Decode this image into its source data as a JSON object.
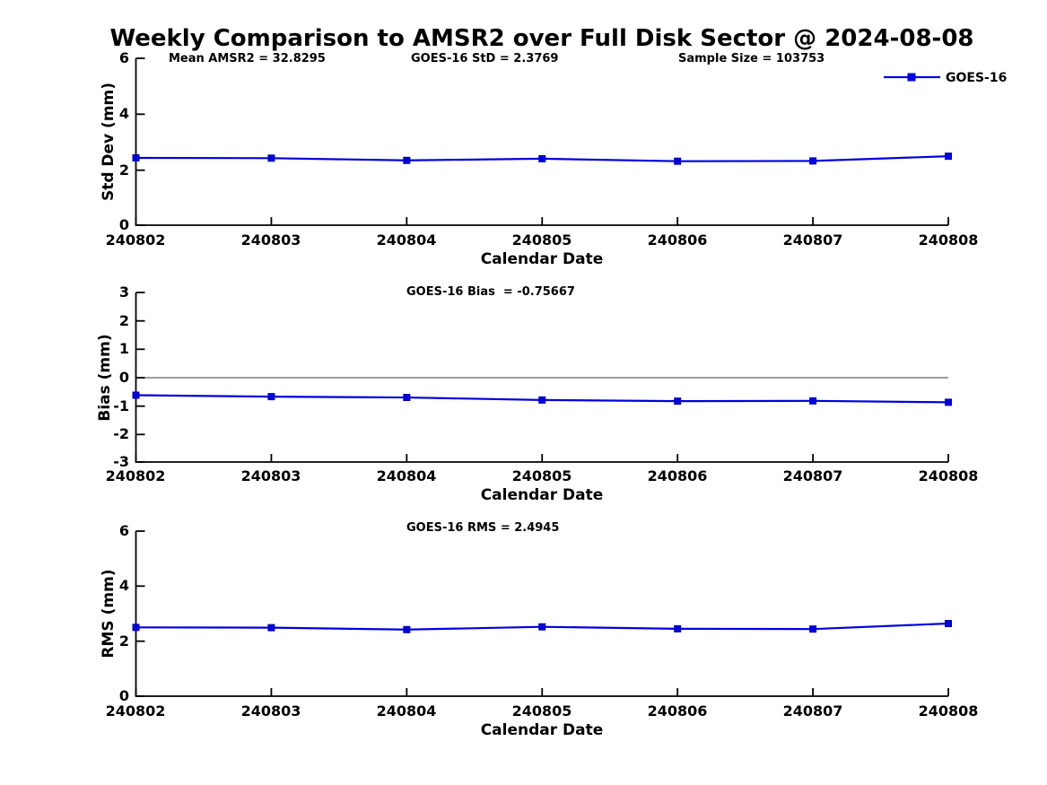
{
  "title": "Weekly Comparison to AMSR2 over Full Disk Sector @ 2024-08-08",
  "colors": {
    "series": "#0000e0",
    "marker_edge": "#0000b0",
    "zero_line": "#7f7f7f",
    "axis": "#000000"
  },
  "stats": {
    "mean_amsr2": 32.8295,
    "goes16_std": 2.3769,
    "sample_size": 103753,
    "goes16_bias": -0.75667,
    "goes16_rms": 2.4945
  },
  "chart_data": [
    {
      "type": "line",
      "ylabel": "Std Dev (mm)",
      "xlabel": "Calendar Date",
      "x": [
        "240802",
        "240803",
        "240804",
        "240805",
        "240806",
        "240807",
        "240808"
      ],
      "yticks": [
        0,
        2,
        4,
        6
      ],
      "ylim": [
        0,
        6
      ],
      "grid": false,
      "legend_position": "top-right",
      "annotations": [
        "Mean AMSR2 = 32.8295",
        "GOES-16 StD = 2.3769",
        "Sample Size = 103753"
      ],
      "series": [
        {
          "name": "GOES-16",
          "values": [
            2.42,
            2.41,
            2.33,
            2.39,
            2.3,
            2.31,
            2.48
          ]
        }
      ]
    },
    {
      "type": "line",
      "ylabel": "Bias (mm)",
      "xlabel": "Calendar Date",
      "x": [
        "240802",
        "240803",
        "240804",
        "240805",
        "240806",
        "240807",
        "240808"
      ],
      "yticks": [
        -3,
        -2,
        -1,
        0,
        1,
        2,
        3
      ],
      "ylim": [
        -3,
        3
      ],
      "grid": false,
      "zero_line": true,
      "annotations": [
        "GOES-16 Bias  = -0.75667"
      ],
      "series": [
        {
          "name": "GOES-16",
          "values": [
            -0.62,
            -0.67,
            -0.7,
            -0.79,
            -0.83,
            -0.82,
            -0.87
          ]
        }
      ]
    },
    {
      "type": "line",
      "ylabel": "RMS (mm)",
      "xlabel": "Calendar Date",
      "x": [
        "240802",
        "240803",
        "240804",
        "240805",
        "240806",
        "240807",
        "240808"
      ],
      "yticks": [
        0,
        2,
        4,
        6
      ],
      "ylim": [
        0,
        6
      ],
      "grid": false,
      "annotations": [
        "GOES-16 RMS = 2.4945"
      ],
      "series": [
        {
          "name": "GOES-16",
          "values": [
            2.5,
            2.49,
            2.42,
            2.52,
            2.45,
            2.44,
            2.64
          ]
        }
      ]
    }
  ]
}
